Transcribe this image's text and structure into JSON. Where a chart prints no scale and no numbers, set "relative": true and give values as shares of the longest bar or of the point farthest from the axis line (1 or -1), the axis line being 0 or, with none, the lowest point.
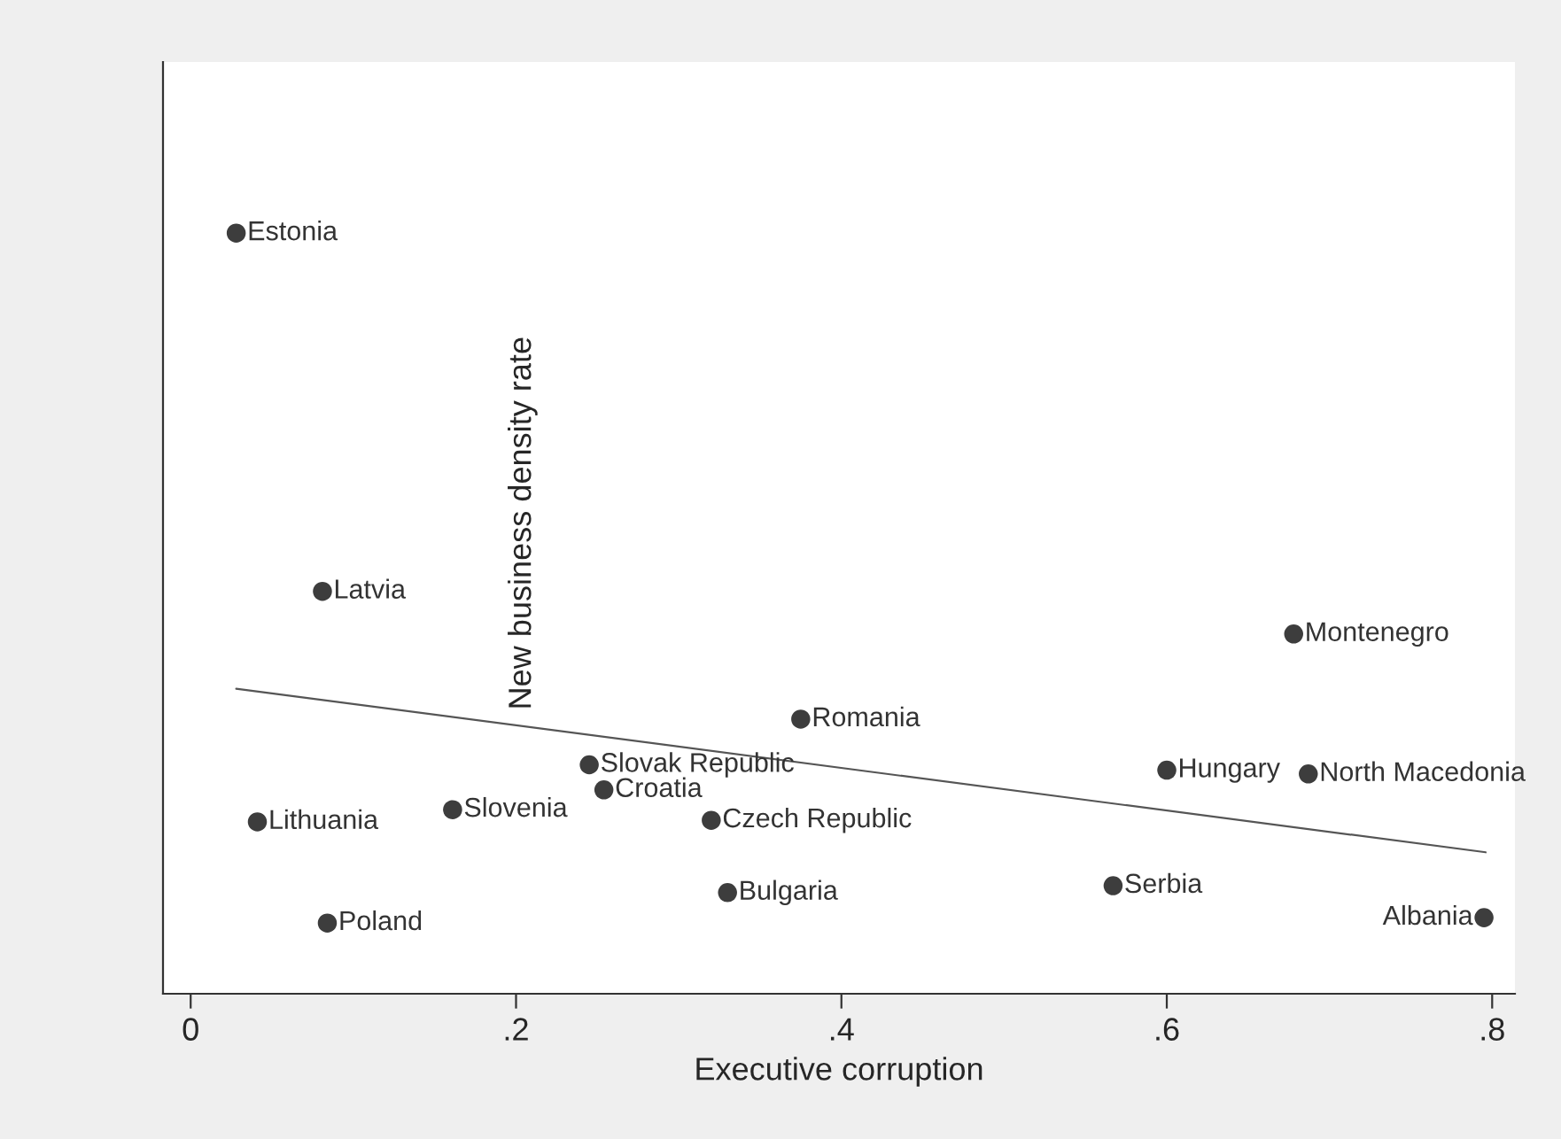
{
  "chart_data": {
    "type": "scatter",
    "relative": true,
    "xlabel": "Executive corruption",
    "ylabel": "New business density rate",
    "xlim": [
      -0.017,
      0.814
    ],
    "xticks": [
      0,
      {
        "value": 0.2,
        "label": ".2"
      },
      {
        "value": 0.4,
        "label": ".4"
      },
      {
        "value": 0.6,
        "label": ".6"
      },
      {
        "value": 0.8,
        "label": ".8"
      }
    ],
    "marker": "circle",
    "series": [
      {
        "name": "Estonia",
        "color": "#3d3d3d",
        "x": [
          0.028
        ],
        "values": [
          1.0
        ]
      },
      {
        "name": "Latvia",
        "color": "#3d3d3d",
        "x": [
          0.081
        ],
        "values": [
          0.529
        ]
      },
      {
        "name": "Lithuania",
        "color": "#3d3d3d",
        "x": [
          0.041
        ],
        "values": [
          0.226
        ]
      },
      {
        "name": "Poland",
        "color": "#3d3d3d",
        "x": [
          0.084
        ],
        "values": [
          0.093
        ]
      },
      {
        "name": "Slovenia",
        "color": "#3d3d3d",
        "x": [
          0.161
        ],
        "values": [
          0.242
        ]
      },
      {
        "name": "Slovak Republic",
        "color": "#3d3d3d",
        "x": [
          0.245
        ],
        "values": [
          0.301
        ]
      },
      {
        "name": "Croatia",
        "color": "#3d3d3d",
        "x": [
          0.254
        ],
        "values": [
          0.268
        ]
      },
      {
        "name": "Czech Republic",
        "color": "#3d3d3d",
        "x": [
          0.32
        ],
        "values": [
          0.228
        ]
      },
      {
        "name": "Bulgaria",
        "color": "#3d3d3d",
        "x": [
          0.33
        ],
        "values": [
          0.133
        ]
      },
      {
        "name": "Romania",
        "color": "#3d3d3d",
        "x": [
          0.375
        ],
        "values": [
          0.361
        ]
      },
      {
        "name": "Serbia",
        "color": "#3d3d3d",
        "x": [
          0.567
        ],
        "values": [
          0.142
        ]
      },
      {
        "name": "Hungary",
        "color": "#3d3d3d",
        "x": [
          0.6
        ],
        "values": [
          0.294
        ]
      },
      {
        "name": "North Macedonia",
        "color": "#3d3d3d",
        "x": [
          0.687
        ],
        "values": [
          0.289
        ]
      },
      {
        "name": "Montenegro",
        "color": "#3d3d3d",
        "x": [
          0.678
        ],
        "values": [
          0.473
        ]
      },
      {
        "name": "Albania",
        "color": "#3d3d3d",
        "x": [
          0.795
        ],
        "values": [
          0.1
        ]
      },
      {
        "type": "line",
        "color": "#555555",
        "line_style": "solid",
        "marker": "none",
        "x": [
          0.028,
          0.796
        ],
        "values": [
          0.401,
          0.186
        ]
      }
    ]
  }
}
